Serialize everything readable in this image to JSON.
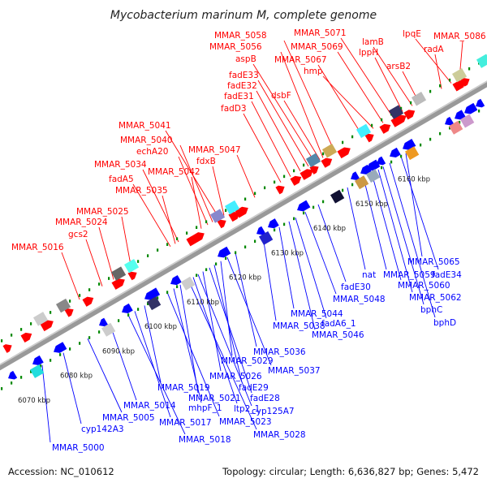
{
  "title": "Mycobacterium marinum M, complete genome",
  "footer": {
    "accession": "Accession: NC_010612",
    "summary": "Topology: circular; Length: 6,636,827 bp; Genes: 5,472"
  },
  "colors": {
    "forward": "#ff0000",
    "reverse": "#0000ff",
    "backbone": "#999999",
    "tick": "#008800"
  },
  "kbp_ticks": [
    {
      "label": "6070 kbp",
      "pos": 6070
    },
    {
      "label": "6080 kbp",
      "pos": 6080
    },
    {
      "label": "6090 kbp",
      "pos": 6090
    },
    {
      "label": "6100 kbp",
      "pos": 6100
    },
    {
      "label": "6110 kbp",
      "pos": 6110
    },
    {
      "label": "6120 kbp",
      "pos": 6120
    },
    {
      "label": "6130 kbp",
      "pos": 6130
    },
    {
      "label": "6140 kbp",
      "pos": 6140
    },
    {
      "label": "6150 kbp",
      "pos": 6150
    },
    {
      "label": "6160 kbp",
      "pos": 6160
    }
  ],
  "forward_labels": [
    "MMAR_5016",
    "gcs2",
    "MMAR_5024",
    "MMAR_5025",
    "MMAR_5035",
    "fadA5",
    "MMAR_5034",
    "MMAR_5042",
    "echA20",
    "MMAR_5040",
    "MMAR_5041",
    "fdxB",
    "MMAR_5047",
    "fadD3",
    "fadE31",
    "fadE32",
    "fadE33",
    "dsbF",
    "aspB",
    "MMAR_5056",
    "MMAR_5058",
    "MMAR_5067",
    "hmp",
    "MMAR_5069",
    "MMAR_5071",
    "lppH",
    "lamB",
    "arsB2",
    "radA",
    "lpqE",
    "MMAR_5086"
  ],
  "reverse_labels": [
    "MMAR_5000",
    "cyp142A3",
    "MMAR_5005",
    "MMAR_5014",
    "MMAR_5018",
    "MMAR_5017",
    "MMAR_5019",
    "MMAR_5023",
    "mhpF_1",
    "MMAR_5021",
    "MMAR_5028",
    "ltp2_1",
    "cyp125A7",
    "MMAR_5026",
    "fadE28",
    "fadE29",
    "MMAR_5029",
    "MMAR_5037",
    "MMAR_5036",
    "MMAR_5038",
    "MMAR_5044",
    "MMAR_5046",
    "fadA6_1",
    "MMAR_5048",
    "fadE30",
    "nat",
    "MMAR_5059",
    "MMAR_5060",
    "MMAR_5062",
    "bphC",
    "bphD",
    "fadE34",
    "MMAR_5065"
  ]
}
